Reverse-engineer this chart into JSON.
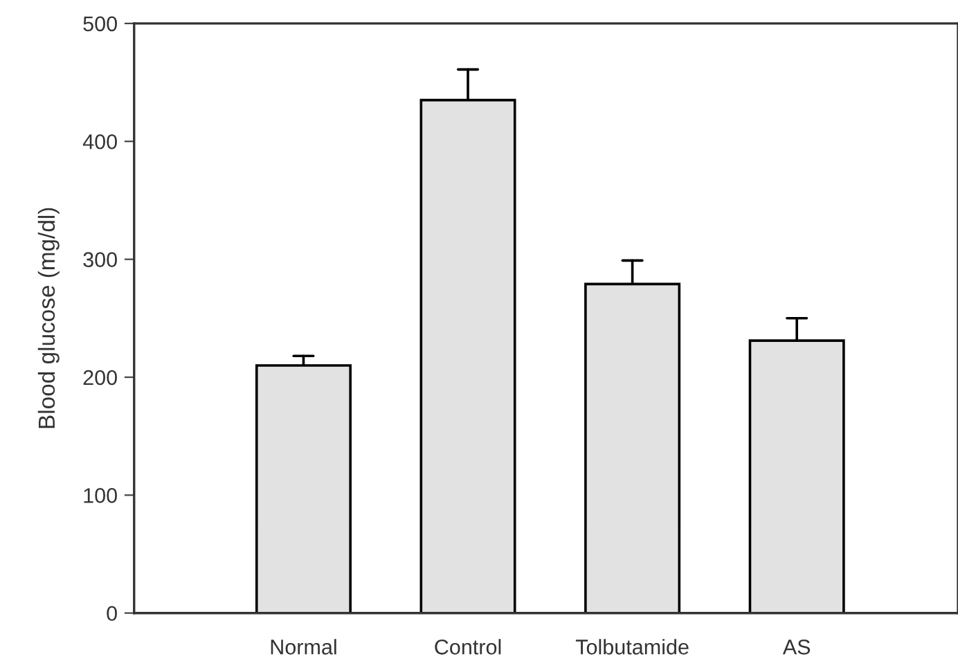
{
  "chart_data": {
    "type": "bar",
    "ylabel": "Blood glucose (mg/dl)",
    "categories": [
      "Normal",
      "Control",
      "Tolbutamide",
      "AS"
    ],
    "values": [
      210,
      435,
      279,
      231
    ],
    "errors": [
      [
        210,
        218
      ],
      [
        435,
        461
      ],
      [
        279,
        299
      ],
      [
        231,
        250
      ]
    ],
    "color": "#e2e2e2",
    "ylim": [
      0,
      500
    ],
    "yticks": [
      0,
      100,
      200,
      300,
      400,
      500
    ],
    "grid": false,
    "legend": false
  }
}
